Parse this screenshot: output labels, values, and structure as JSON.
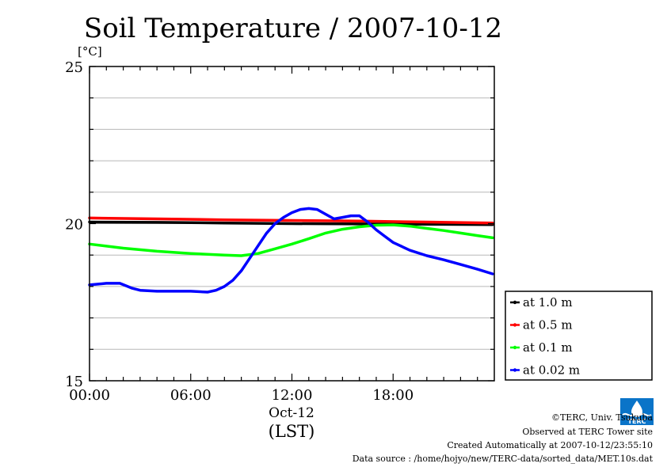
{
  "chart_data": {
    "type": "line",
    "title": "Soil Temperature / 2007-10-12",
    "yunit": "[°C]",
    "ylim": [
      15,
      25
    ],
    "yticks": [
      15,
      20,
      25
    ],
    "xlim": [
      0,
      24
    ],
    "xticks": [
      0,
      6,
      12,
      18
    ],
    "xticklabels": [
      "00:00",
      "06:00",
      "12:00",
      "18:00"
    ],
    "date_label": "Oct-12",
    "xlabel": "(LST)",
    "grid": true,
    "legend_position": "bottom-right outside plot",
    "series": [
      {
        "name": "at 1.0 m",
        "color": "#000000",
        "x": [
          0,
          4,
          8,
          12,
          16,
          20,
          23.9
        ],
        "values": [
          20.05,
          20.04,
          20.02,
          20.0,
          19.99,
          19.98,
          19.97
        ]
      },
      {
        "name": "at 0.5 m",
        "color": "#ff0000",
        "x": [
          0,
          4,
          8,
          12,
          16,
          20,
          23.9
        ],
        "values": [
          20.18,
          20.15,
          20.12,
          20.1,
          20.08,
          20.05,
          20.02
        ]
      },
      {
        "name": "at 0.1 m",
        "color": "#00ff00",
        "x": [
          0,
          2,
          4,
          6,
          8,
          9,
          10,
          11,
          12,
          13,
          14,
          15,
          16,
          17,
          18,
          19,
          20,
          21,
          22,
          23,
          23.9
        ],
        "values": [
          19.35,
          19.22,
          19.12,
          19.05,
          19.0,
          18.98,
          19.05,
          19.2,
          19.35,
          19.52,
          19.7,
          19.82,
          19.9,
          19.95,
          19.96,
          19.92,
          19.85,
          19.78,
          19.7,
          19.62,
          19.55
        ]
      },
      {
        "name": "at 0.02 m",
        "color": "#0000ff",
        "x": [
          0,
          1,
          1.8,
          2.5,
          3,
          4,
          5,
          6,
          7,
          7.5,
          8,
          8.5,
          9,
          9.5,
          10,
          10.5,
          11,
          11.5,
          12,
          12.5,
          13,
          13.5,
          14,
          14.5,
          15,
          15.5,
          16,
          16.5,
          17,
          17.5,
          18,
          19,
          20,
          21,
          22,
          23,
          23.9
        ],
        "values": [
          18.05,
          18.1,
          18.1,
          17.95,
          17.88,
          17.85,
          17.85,
          17.85,
          17.82,
          17.88,
          18.0,
          18.2,
          18.5,
          18.9,
          19.3,
          19.7,
          20.0,
          20.2,
          20.35,
          20.45,
          20.48,
          20.45,
          20.3,
          20.15,
          20.2,
          20.25,
          20.25,
          20.05,
          19.8,
          19.6,
          19.4,
          19.15,
          18.98,
          18.85,
          18.7,
          18.55,
          18.4
        ]
      }
    ]
  },
  "footer": {
    "copyright": "©TERC, Univ. Tsukuba",
    "observed": "Observed at TERC Tower site",
    "created": "Created Automatically at 2007-10-12/23:55:10",
    "source": "Data source : /home/hojyo/new/TERC-data/sorted_data/MET.10s.dat"
  },
  "logo": {
    "text": "TERC",
    "color": "#0a74c8"
  }
}
